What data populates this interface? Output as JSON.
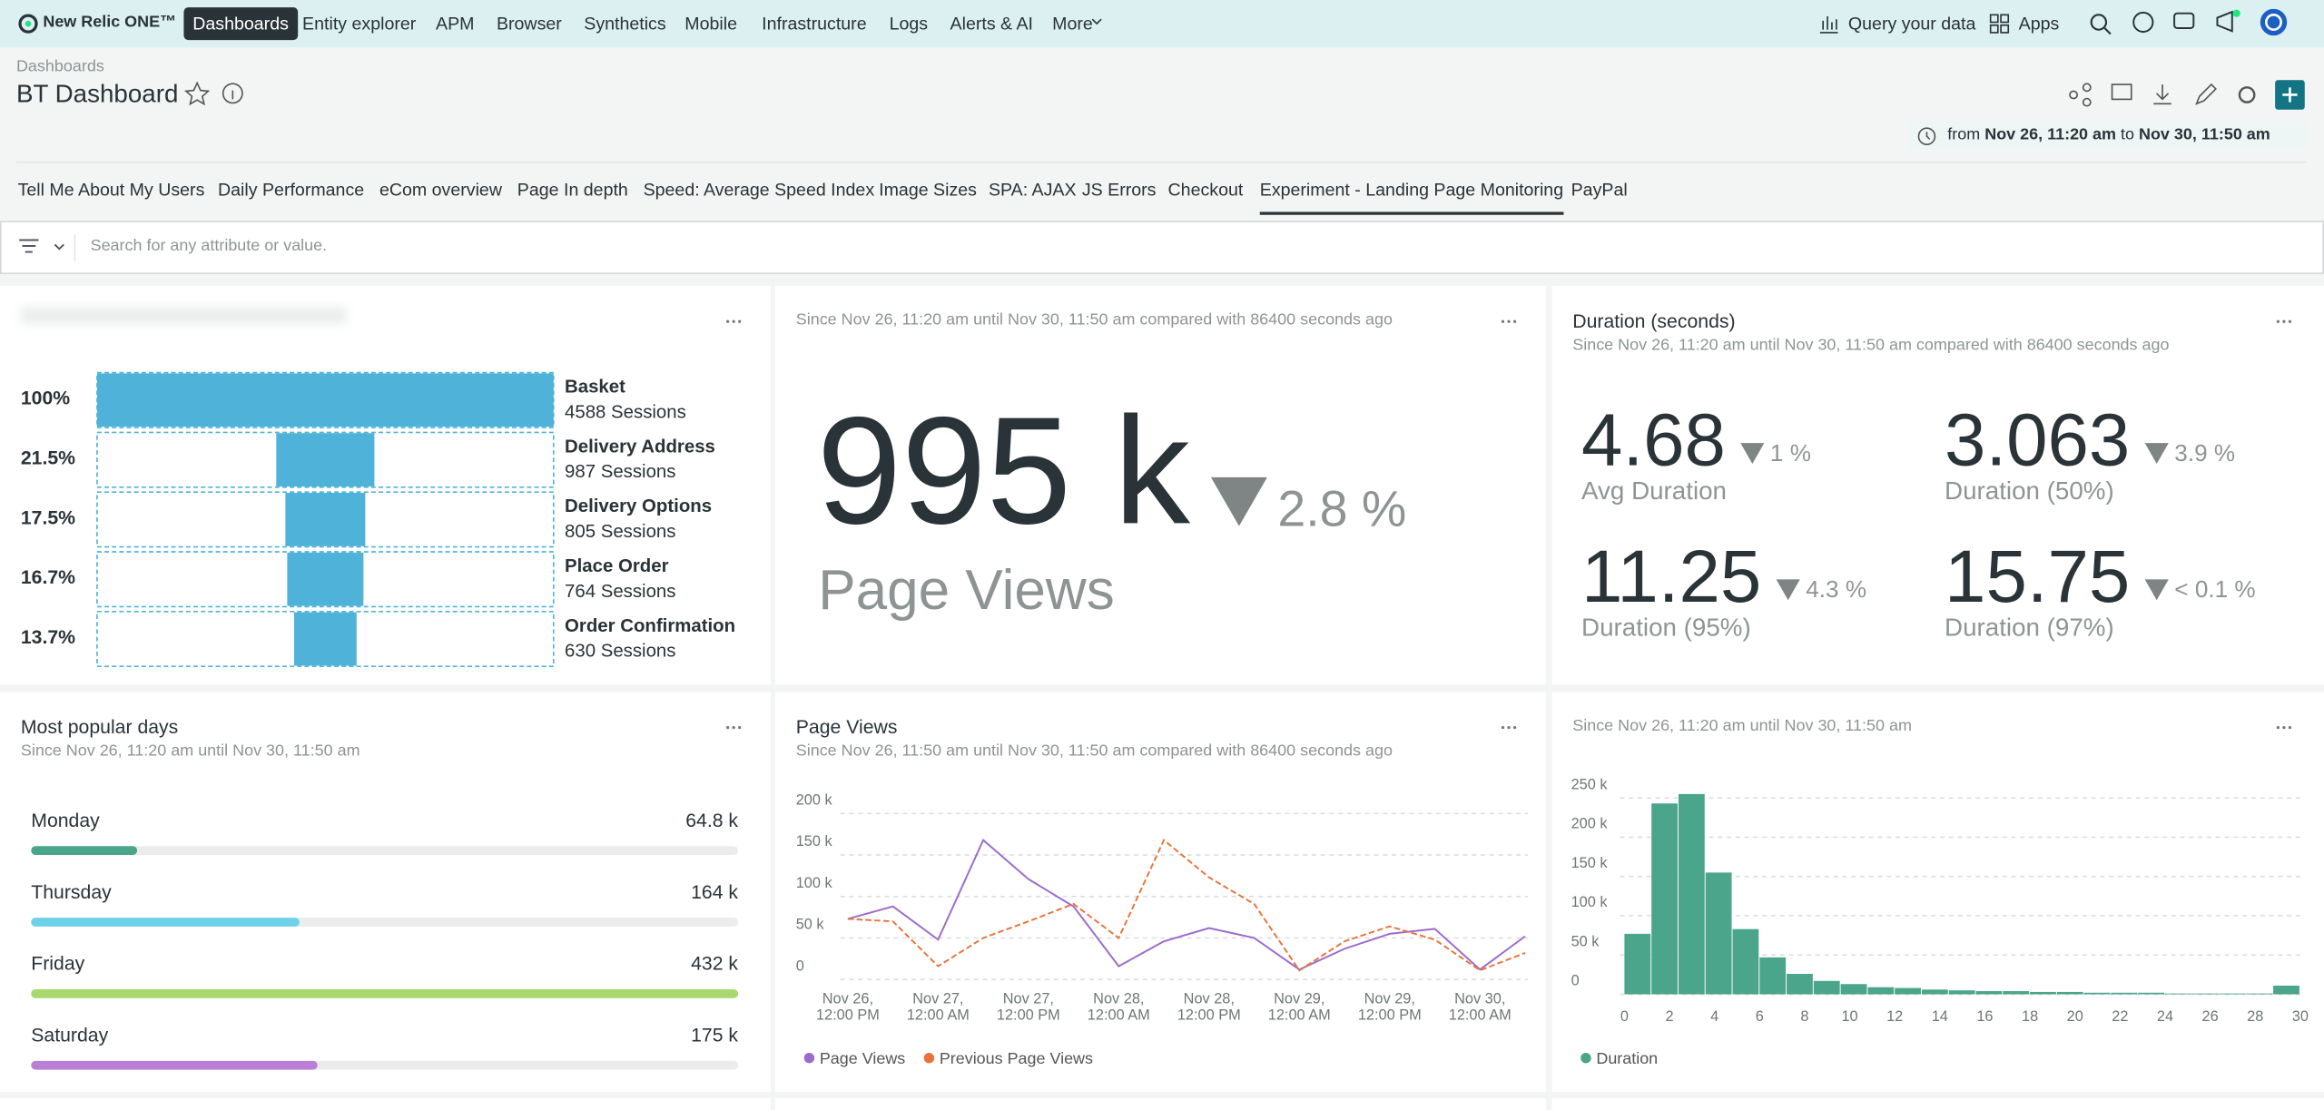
{
  "nav": {
    "brand": "New Relic ONE™",
    "items": [
      "Dashboards",
      "Entity explorer",
      "APM",
      "Browser",
      "Synthetics",
      "Mobile",
      "Infrastructure",
      "Logs",
      "Alerts & AI",
      "More"
    ],
    "active": 0,
    "right": [
      "Query your data",
      "Apps"
    ]
  },
  "header": {
    "breadcrumb": "Dashboards",
    "title": "BT Dashboard",
    "time": {
      "from_label": "from",
      "from": "Nov 26, 11:20 am",
      "to_label": "to",
      "to": "Nov 30, 11:50 am"
    }
  },
  "tabs": {
    "items": [
      "Tell Me About My Users",
      "Daily Performance",
      "eCom overview",
      "Page In depth",
      "Speed: Average Speed Index",
      "Image Sizes",
      "SPA: AJAX",
      "JS Errors",
      "Checkout",
      "Experiment - Landing Page Monitoring",
      "PayPal"
    ],
    "active": 9
  },
  "search": {
    "placeholder": "Search for any attribute or value."
  },
  "funnel": {
    "type": "funnel",
    "color": "#4fb3d9",
    "categories": [
      "Basket",
      "Delivery Address",
      "Delivery Options",
      "Place Order",
      "Order Confirmation"
    ],
    "values": [
      100,
      21.5,
      17.5,
      16.7,
      13.7
    ],
    "value_labels": [
      "100%",
      "21.5%",
      "17.5%",
      "16.7%",
      "13.7%"
    ],
    "sessions_labels": [
      "4588 Sessions",
      "987 Sessions",
      "805 Sessions",
      "764 Sessions",
      "630 Sessions"
    ]
  },
  "billboard": {
    "subtitle": "Since Nov 26, 11:20 am until Nov 30, 11:50 am compared with 86400 seconds ago",
    "value": "995 k",
    "change": "2.8 %",
    "label": "Page Views"
  },
  "duration": {
    "title": "Duration (seconds)",
    "subtitle": "Since Nov 26, 11:20 am until Nov 30, 11:50 am compared with 86400 seconds ago",
    "metrics": [
      {
        "value": "4.68",
        "change": "1 %",
        "label": "Avg Duration"
      },
      {
        "value": "3.063",
        "change": "3.9 %",
        "label": "Duration (50%)"
      },
      {
        "value": "11.25",
        "change": "4.3 %",
        "label": "Duration (95%)"
      },
      {
        "value": "15.75",
        "change": "< 0.1 %",
        "label": "Duration (97%)"
      }
    ]
  },
  "popular_days": {
    "type": "bar",
    "title": "Most popular days",
    "subtitle": "Since Nov 26, 11:20 am until Nov 30, 11:50 am",
    "categories": [
      "Monday",
      "Thursday",
      "Friday",
      "Saturday"
    ],
    "values": [
      64.8,
      164,
      432,
      175
    ],
    "value_labels": [
      "64.8 k",
      "164 k",
      "432 k",
      "175 k"
    ],
    "colors": [
      "#4aa58b",
      "#6dd1ea",
      "#a9d86e",
      "#b980d6"
    ]
  },
  "page_views": {
    "type": "line",
    "title": "Page Views",
    "subtitle": "Since Nov 26, 11:50 am until Nov 30, 11:50 am compared with 86400 seconds ago",
    "categories": [
      "Nov 26, 12:00 PM",
      null,
      "Nov 27, 12:00 AM",
      null,
      "Nov 27, 12:00 PM",
      null,
      "Nov 28, 12:00 AM",
      null,
      "Nov 28, 12:00 PM",
      null,
      "Nov 29, 12:00 AM",
      null,
      "Nov 29, 12:00 PM",
      null,
      "Nov 30, 12:00 AM",
      null
    ],
    "series": [
      {
        "name": "Page Views",
        "color": "#9b6bcc",
        "dashed": false,
        "values": [
          73000,
          88000,
          48000,
          168000,
          121000,
          88000,
          16000,
          46000,
          62000,
          50000,
          12000,
          37000,
          55000,
          61000,
          12000,
          52000
        ]
      },
      {
        "name": "Previous Page Views",
        "color": "#e8743b",
        "dashed": true,
        "values": [
          73000,
          70000,
          16000,
          50000,
          70000,
          91000,
          50000,
          168000,
          123000,
          91000,
          11000,
          46000,
          64000,
          48000,
          11000,
          32000
        ]
      }
    ],
    "ylim": [
      0,
      200000
    ],
    "yticks": [
      {
        "value": 0,
        "label": "0"
      },
      {
        "value": 50000,
        "label": "50 k"
      },
      {
        "value": 100000,
        "label": "100 k"
      },
      {
        "value": 150000,
        "label": "150 k"
      },
      {
        "value": 200000,
        "label": "200 k"
      }
    ],
    "grid": true
  },
  "histogram": {
    "type": "histogram",
    "subtitle": "Since Nov 26, 11:20 am until Nov 30, 11:50 am",
    "bins": [
      0,
      1.2,
      2.4,
      3.6,
      4.8,
      6,
      7.2,
      8.4,
      9.6,
      10.8,
      12,
      13.2,
      14.4,
      15.6,
      16.8,
      18,
      19.2,
      20.4,
      21.6,
      22.8,
      24,
      25.2,
      26.4,
      27.6,
      28.8,
      30
    ],
    "series": [
      {
        "name": "Duration",
        "color": "#4aa58b",
        "values": [
          77000,
          243000,
          255000,
          155000,
          83000,
          47000,
          26000,
          17000,
          13000,
          9000,
          8000,
          6000,
          5000,
          4000,
          4000,
          3000,
          3000,
          2000,
          2000,
          2000,
          1000,
          1000,
          1000,
          1000,
          11000
        ]
      }
    ],
    "xlim": [
      0,
      30
    ],
    "xticks": [
      0,
      2,
      4,
      6,
      8,
      10,
      12,
      14,
      16,
      18,
      20,
      22,
      24,
      26,
      28,
      30
    ],
    "ylim": [
      0,
      250000
    ],
    "yticks": [
      {
        "value": 0,
        "label": "0"
      },
      {
        "value": 50000,
        "label": "50 k"
      },
      {
        "value": 100000,
        "label": "100 k"
      },
      {
        "value": 150000,
        "label": "150 k"
      },
      {
        "value": 200000,
        "label": "200 k"
      },
      {
        "value": 250000,
        "label": "250 k"
      }
    ],
    "grid": true
  }
}
